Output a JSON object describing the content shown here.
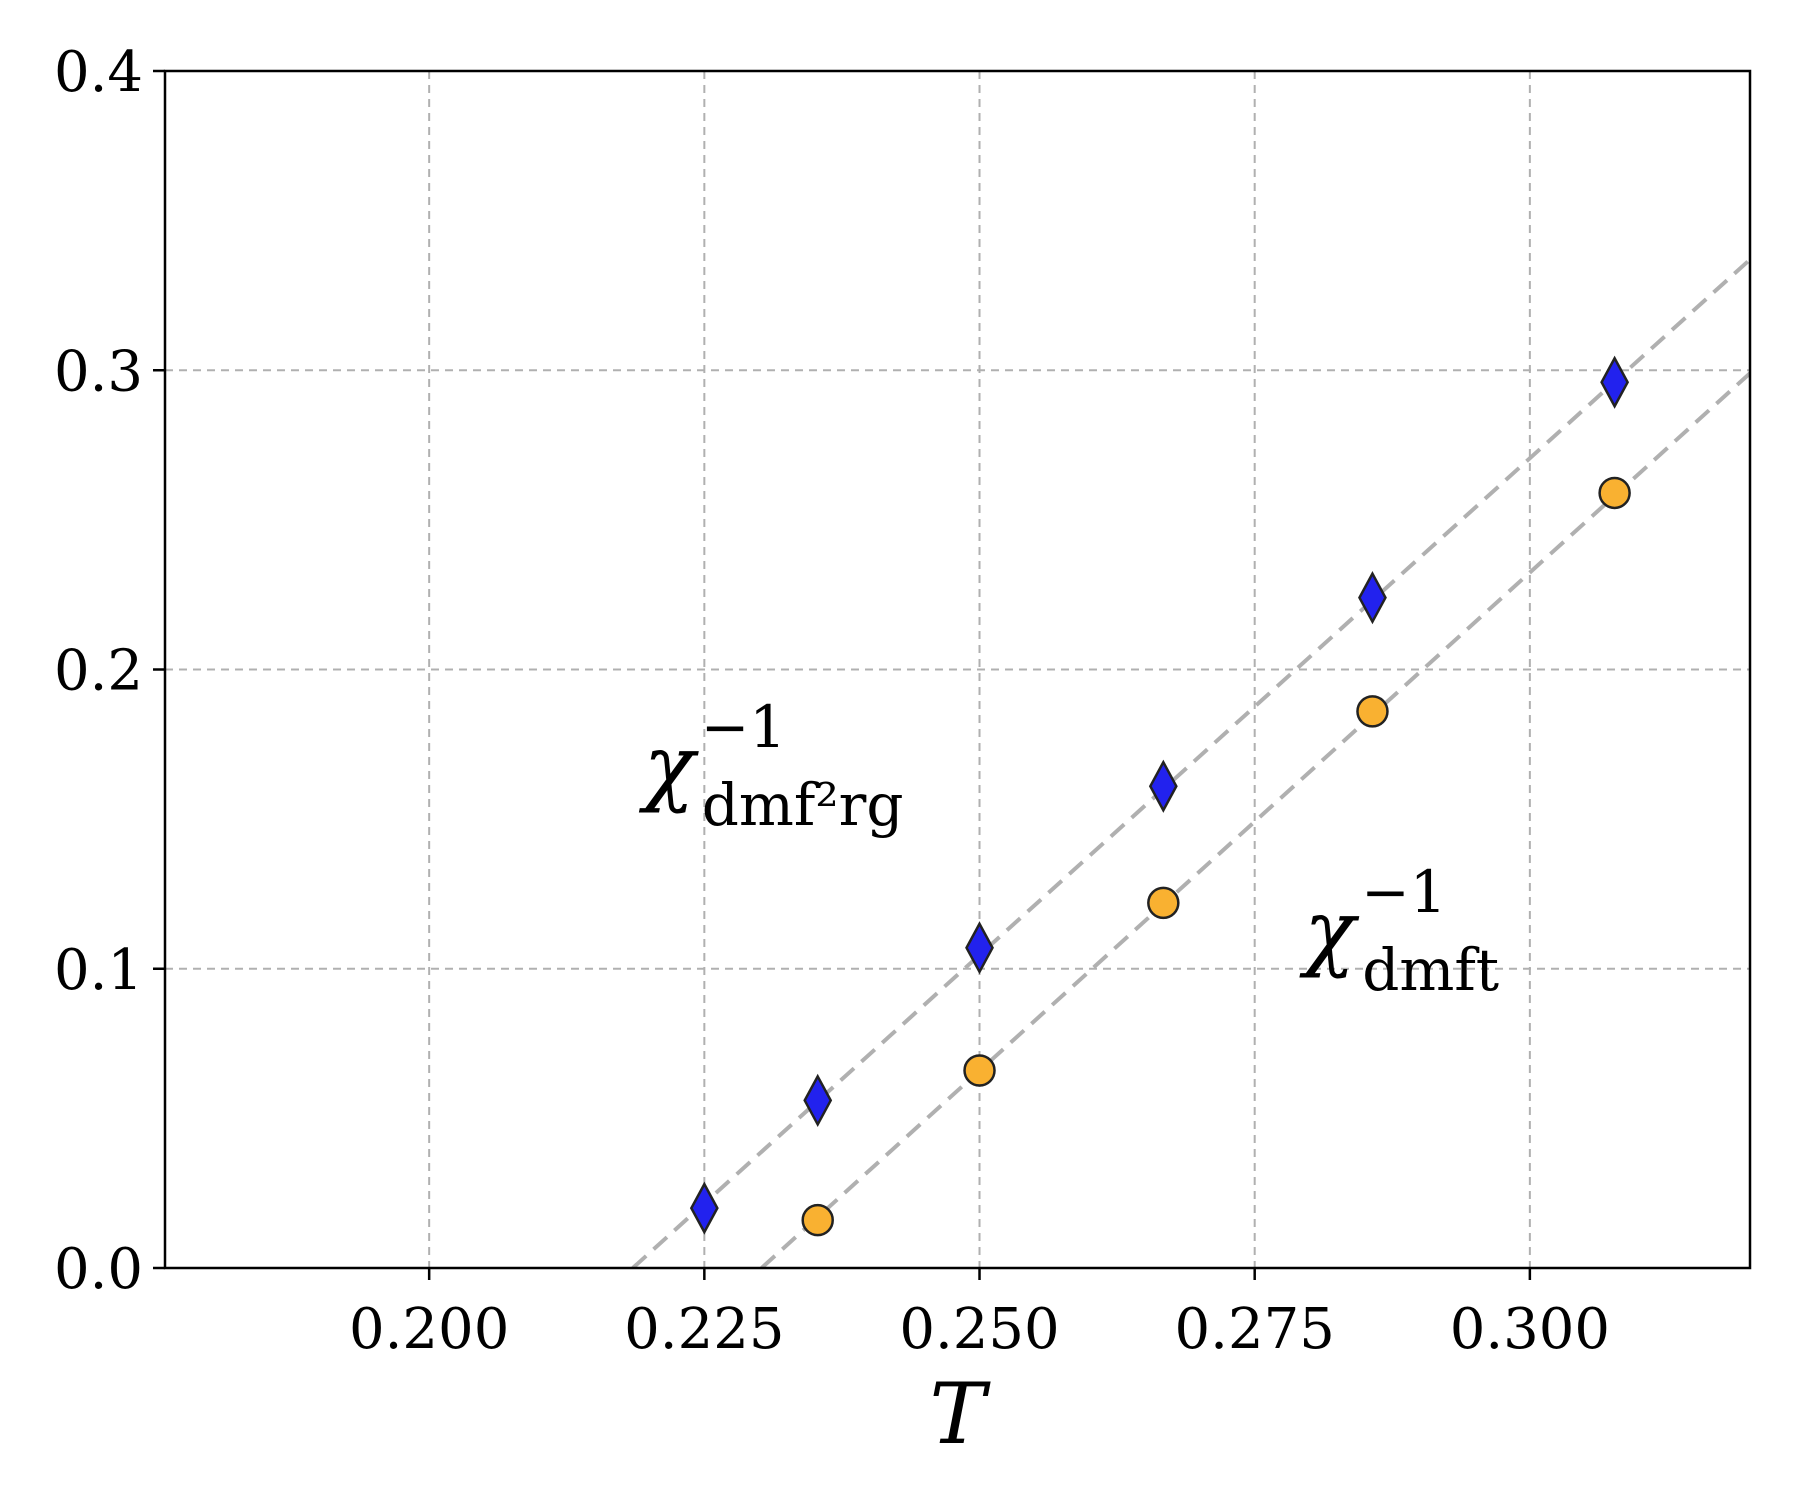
{
  "chart_data": {
    "type": "scatter",
    "xlabel": "T",
    "ylabel": "",
    "xlim": [
      0.176,
      0.32
    ],
    "ylim": [
      0.0,
      0.4
    ],
    "x_ticks": [
      0.2,
      0.225,
      0.25,
      0.275,
      0.3
    ],
    "x_tick_labels": [
      "0.200",
      "0.225",
      "0.250",
      "0.275",
      "0.300"
    ],
    "y_ticks": [
      0.0,
      0.1,
      0.2,
      0.3,
      0.4
    ],
    "y_tick_labels": [
      "0.0",
      "0.1",
      "0.2",
      "0.3",
      "0.4"
    ],
    "grid": true,
    "series": [
      {
        "marker": "diamond",
        "color": "#2222ee",
        "x": [
          0.225,
          0.2353,
          0.25,
          0.2667,
          0.2857,
          0.3077
        ],
        "y": [
          0.02,
          0.056,
          0.107,
          0.161,
          0.224,
          0.296
        ],
        "fit": {
          "x": [
            0.2185,
            0.32
          ],
          "y": [
            0.0,
            0.337
          ]
        }
      },
      {
        "marker": "circle",
        "color": "#f9b131",
        "x": [
          0.2353,
          0.25,
          0.2667,
          0.2857,
          0.3077
        ],
        "y": [
          0.016,
          0.066,
          0.122,
          0.186,
          0.259
        ],
        "fit": {
          "x": [
            0.2302,
            0.32
          ],
          "y": [
            0.0,
            0.299
          ]
        }
      }
    ],
    "annotations": [
      {
        "symbol": "χ",
        "sup": "−1",
        "sub": "dmf²rg",
        "at": [
          0.2195,
          0.158
        ]
      },
      {
        "symbol": "χ",
        "sup": "−1",
        "sub": "dmft",
        "at": [
          0.2795,
          0.103
        ]
      }
    ]
  }
}
